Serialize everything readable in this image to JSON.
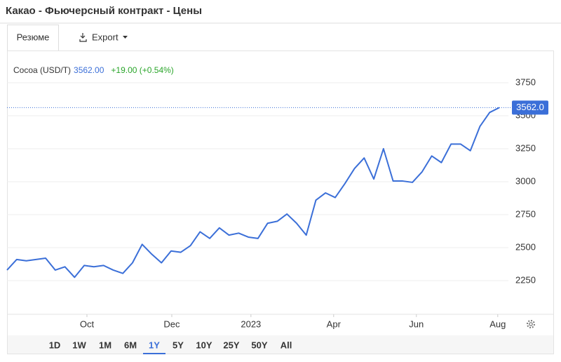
{
  "header": {
    "title": "Какао - Фьючерсный контракт - Цены"
  },
  "tabs": [
    "Резюме",
    "Export"
  ],
  "ranges": {
    "items": [
      "1D",
      "1W",
      "1M",
      "6M",
      "1Y",
      "5Y",
      "10Y",
      "25Y",
      "50Y",
      "All"
    ],
    "selected": 4
  },
  "chart_data": {
    "type": "line",
    "legend": {
      "price": "3562.00",
      "change": "+19.00 (+0.54%)"
    },
    "price_label": "3562.0",
    "series": [
      {
        "name": "Cocoa (USD/T)",
        "color": "#3b6fd8",
        "values": [
          2330,
          2410,
          2400,
          2410,
          2420,
          2330,
          2355,
          2275,
          2365,
          2355,
          2365,
          2330,
          2305,
          2385,
          2525,
          2450,
          2385,
          2475,
          2465,
          2515,
          2620,
          2570,
          2650,
          2595,
          2610,
          2580,
          2570,
          2685,
          2700,
          2755,
          2685,
          2595,
          2860,
          2915,
          2880,
          2985,
          3100,
          3180,
          3020,
          3250,
          3005,
          3005,
          2995,
          3075,
          3195,
          3145,
          3285,
          3285,
          3235,
          3420,
          3525,
          3562
        ]
      }
    ],
    "xlim": [
      0,
      51
    ],
    "xticks": [
      {
        "value": 8.28,
        "label": "Oct"
      },
      {
        "value": 17.07,
        "label": "Dec"
      },
      {
        "value": 25.27,
        "label": "2023"
      },
      {
        "value": 33.84,
        "label": "Apr"
      },
      {
        "value": 42.41,
        "label": "Jun"
      },
      {
        "value": 50.84,
        "label": "Aug"
      }
    ],
    "ylim": [
      2000,
      3800
    ],
    "yticks": [
      2250,
      2500,
      2750,
      3000,
      3250,
      3500,
      3750
    ],
    "grid": true
  }
}
